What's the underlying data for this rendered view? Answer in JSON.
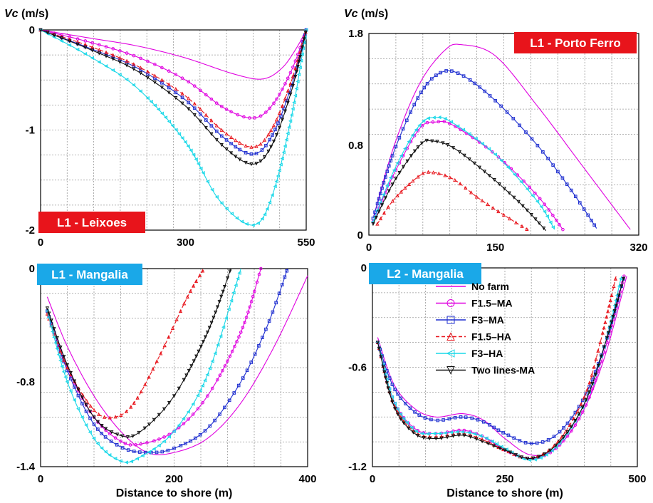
{
  "chart_data": [
    {
      "type": "line",
      "title": "L1 - Leixoes",
      "title_bg": "#e8141b",
      "ylabel_var": "Vc",
      "ylabel_unit": " (m/s)",
      "xlabel": "",
      "xlim": [
        0,
        550
      ],
      "ylim": [
        -2,
        0
      ],
      "xticks": [
        0,
        300,
        550
      ],
      "yticks": [
        0,
        -1,
        -2
      ],
      "xtick_labels": [
        "0",
        "300",
        "550"
      ],
      "ytick_labels": [
        "0",
        "-1",
        "-2"
      ],
      "grid": true,
      "series": [
        {
          "name": "No farm",
          "x": [
            0,
            100,
            200,
            300,
            400,
            460,
            500,
            530,
            550
          ],
          "y": [
            0,
            -0.08,
            -0.16,
            -0.28,
            -0.44,
            -0.49,
            -0.38,
            -0.18,
            0
          ]
        },
        {
          "name": "F1.5–MA",
          "x": [
            0,
            100,
            200,
            300,
            380,
            440,
            480,
            520,
            550
          ],
          "y": [
            0,
            -0.12,
            -0.27,
            -0.5,
            -0.78,
            -0.88,
            -0.75,
            -0.4,
            0
          ]
        },
        {
          "name": "F3–MA",
          "x": [
            0,
            100,
            200,
            300,
            380,
            440,
            480,
            520,
            550
          ],
          "y": [
            0,
            -0.18,
            -0.38,
            -0.7,
            -1.08,
            -1.24,
            -1.05,
            -0.55,
            0
          ]
        },
        {
          "name": "F1.5–HA",
          "x": [
            0,
            100,
            200,
            300,
            380,
            440,
            480,
            520,
            550
          ],
          "y": [
            0,
            -0.16,
            -0.36,
            -0.66,
            -1.02,
            -1.17,
            -0.98,
            -0.5,
            0
          ]
        },
        {
          "name": "F3–HA",
          "x": [
            0,
            100,
            200,
            300,
            370,
            440,
            480,
            520,
            550
          ],
          "y": [
            0,
            -0.26,
            -0.58,
            -1.12,
            -1.7,
            -1.95,
            -1.65,
            -0.85,
            0
          ]
        },
        {
          "name": "Two lines-MA",
          "x": [
            0,
            100,
            200,
            300,
            380,
            440,
            480,
            520,
            550
          ],
          "y": [
            0,
            -0.19,
            -0.41,
            -0.76,
            -1.17,
            -1.34,
            -1.14,
            -0.6,
            0
          ]
        }
      ]
    },
    {
      "type": "line",
      "title": "L1 - Porto Ferro",
      "title_bg": "#e8141b",
      "ylabel_var": "Vc",
      "ylabel_unit": " (m/s)",
      "xlabel": "",
      "xlim": [
        0,
        320
      ],
      "ylim": [
        0,
        1.8
      ],
      "xticks": [
        0,
        150,
        320
      ],
      "yticks": [
        0,
        0.8,
        1.8
      ],
      "xtick_labels": [
        "0",
        "150",
        "320"
      ],
      "ytick_labels": [
        "0",
        "0.8",
        "1.8"
      ],
      "grid": true,
      "series": [
        {
          "name": "No farm",
          "x": [
            5,
            30,
            60,
            90,
            110,
            150,
            200,
            250,
            310
          ],
          "y": [
            0.15,
            0.8,
            1.35,
            1.65,
            1.7,
            1.6,
            1.15,
            0.65,
            0.05
          ]
        },
        {
          "name": "F1.5–MA",
          "x": [
            5,
            30,
            60,
            80,
            100,
            150,
            200,
            230
          ],
          "y": [
            0.12,
            0.55,
            0.95,
            1.01,
            0.98,
            0.72,
            0.35,
            0.05
          ]
        },
        {
          "name": "F3–MA",
          "x": [
            5,
            30,
            60,
            85,
            110,
            150,
            200,
            240,
            270
          ],
          "y": [
            0.15,
            0.75,
            1.25,
            1.45,
            1.43,
            1.2,
            0.8,
            0.4,
            0.06
          ]
        },
        {
          "name": "F1.5–HA",
          "x": [
            10,
            30,
            60,
            75,
            100,
            130,
            160,
            190
          ],
          "y": [
            0.1,
            0.32,
            0.53,
            0.56,
            0.5,
            0.33,
            0.18,
            0.04
          ]
        },
        {
          "name": "F3–HA",
          "x": [
            5,
            30,
            60,
            80,
            100,
            150,
            200,
            220
          ],
          "y": [
            0.12,
            0.58,
            0.98,
            1.05,
            1.0,
            0.72,
            0.3,
            0.05
          ]
        },
        {
          "name": "Two lines-MA",
          "x": [
            5,
            30,
            60,
            75,
            100,
            140,
            180,
            210
          ],
          "y": [
            0.1,
            0.48,
            0.8,
            0.84,
            0.78,
            0.55,
            0.28,
            0.04
          ]
        }
      ]
    },
    {
      "type": "line",
      "title": "L1 - Mangalia",
      "title_bg": "#1aa8e8",
      "ylabel_var": "",
      "ylabel_unit": "",
      "xlabel": "Distance to shore (m)",
      "xlim": [
        0,
        400
      ],
      "ylim": [
        -1.4,
        0
      ],
      "xticks": [
        0,
        200,
        400
      ],
      "yticks": [
        0,
        -0.8,
        -1.4
      ],
      "xtick_labels": [
        "0",
        "200",
        "400"
      ],
      "ytick_labels": [
        "0",
        "-0.8",
        "-1.4"
      ],
      "grid": true,
      "series": [
        {
          "name": "No farm",
          "x": [
            10,
            40,
            80,
            120,
            160,
            200,
            250,
            300,
            350,
            400
          ],
          "y": [
            -0.2,
            -0.55,
            -0.9,
            -1.15,
            -1.3,
            -1.3,
            -1.2,
            -0.95,
            -0.55,
            -0.05
          ]
        },
        {
          "name": "F1.5–MA",
          "x": [
            10,
            40,
            80,
            120,
            150,
            200,
            250,
            300,
            330
          ],
          "y": [
            -0.3,
            -0.7,
            -1.05,
            -1.22,
            -1.24,
            -1.15,
            -0.9,
            -0.45,
            0
          ]
        },
        {
          "name": "F3–MA",
          "x": [
            10,
            40,
            80,
            120,
            160,
            200,
            250,
            300,
            340,
            370
          ],
          "y": [
            -0.3,
            -0.72,
            -1.1,
            -1.26,
            -1.3,
            -1.27,
            -1.13,
            -0.8,
            -0.4,
            0
          ]
        },
        {
          "name": "F1.5–HA",
          "x": [
            10,
            40,
            80,
            110,
            140,
            180,
            220,
            245
          ],
          "y": [
            -0.32,
            -0.7,
            -1.0,
            -1.05,
            -0.95,
            -0.6,
            -0.2,
            0
          ]
        },
        {
          "name": "F3–HA",
          "x": [
            10,
            40,
            80,
            120,
            150,
            200,
            250,
            300
          ],
          "y": [
            -0.3,
            -0.8,
            -1.2,
            -1.36,
            -1.33,
            -1.15,
            -0.75,
            0
          ]
        },
        {
          "name": "Two lines-MA",
          "x": [
            10,
            40,
            80,
            120,
            150,
            200,
            250,
            285
          ],
          "y": [
            -0.28,
            -0.68,
            -1.05,
            -1.18,
            -1.15,
            -0.9,
            -0.45,
            0
          ]
        }
      ]
    },
    {
      "type": "line",
      "title": "L2 - Mangalia",
      "title_bg": "#1aa8e8",
      "ylabel_var": "",
      "ylabel_unit": "",
      "xlabel": "Distance to shore (m)",
      "xlim": [
        0,
        500
      ],
      "ylim": [
        -1.2,
        0
      ],
      "xticks": [
        0,
        250,
        500
      ],
      "yticks": [
        0,
        -0.6,
        -1.2
      ],
      "xtick_labels": [
        "0",
        "250",
        "500"
      ],
      "ytick_labels": [
        "0",
        "-0.6",
        "-1.2"
      ],
      "grid": true,
      "legend": "top-center",
      "series": [
        {
          "name": "No farm",
          "color": "#e000e0",
          "marker": "none",
          "dash": "",
          "x": [
            10,
            40,
            80,
            120,
            170,
            210,
            250,
            300,
            350,
            400,
            440,
            480
          ],
          "y": [
            -0.42,
            -0.7,
            -0.85,
            -0.9,
            -0.88,
            -0.92,
            -1.03,
            -1.13,
            -1.08,
            -0.85,
            -0.52,
            -0.05
          ]
        },
        {
          "name": "F1.5–MA",
          "color": "#e000e0",
          "marker": "circle",
          "dash": "",
          "x": [
            10,
            40,
            80,
            120,
            170,
            210,
            250,
            300,
            350,
            400,
            440,
            475
          ],
          "y": [
            -0.45,
            -0.8,
            -0.97,
            -1.0,
            -0.98,
            -1.02,
            -1.1,
            -1.15,
            -1.08,
            -0.85,
            -0.48,
            -0.05
          ]
        },
        {
          "name": "F3–MA",
          "color": "#1f2fd0",
          "marker": "square",
          "dash": "",
          "x": [
            10,
            40,
            80,
            120,
            170,
            210,
            250,
            300,
            350,
            400,
            440,
            475
          ],
          "y": [
            -0.45,
            -0.72,
            -0.87,
            -0.92,
            -0.9,
            -0.93,
            -1.0,
            -1.06,
            -1.0,
            -0.78,
            -0.45,
            -0.05
          ]
        },
        {
          "name": "F1.5–HA",
          "color": "#e8141b",
          "marker": "triangle-up",
          "dash": "5,3",
          "x": [
            10,
            40,
            80,
            120,
            170,
            210,
            250,
            300,
            350,
            400,
            430,
            460
          ],
          "y": [
            -0.45,
            -0.82,
            -0.99,
            -1.02,
            -1.0,
            -1.04,
            -1.1,
            -1.15,
            -1.05,
            -0.78,
            -0.45,
            -0.05
          ]
        },
        {
          "name": "F3–HA",
          "color": "#18d8e8",
          "marker": "triangle-left",
          "dash": "",
          "x": [
            10,
            40,
            80,
            120,
            170,
            210,
            250,
            300,
            350,
            400,
            440,
            470
          ],
          "y": [
            -0.45,
            -0.8,
            -0.98,
            -1.0,
            -0.99,
            -1.02,
            -1.09,
            -1.16,
            -1.07,
            -0.82,
            -0.45,
            -0.05
          ]
        },
        {
          "name": "Two lines-MA",
          "color": "#111111",
          "marker": "triangle-down",
          "dash": "",
          "x": [
            10,
            40,
            80,
            120,
            170,
            210,
            250,
            300,
            350,
            400,
            440,
            475
          ],
          "y": [
            -0.45,
            -0.83,
            -1.0,
            -1.03,
            -1.01,
            -1.05,
            -1.1,
            -1.15,
            -1.06,
            -0.82,
            -0.45,
            -0.05
          ]
        }
      ]
    }
  ],
  "series_styles": [
    {
      "color": "#e000e0",
      "marker": "none",
      "dash": ""
    },
    {
      "color": "#e000e0",
      "marker": "circle",
      "dash": ""
    },
    {
      "color": "#1f2fd0",
      "marker": "square",
      "dash": ""
    },
    {
      "color": "#e8141b",
      "marker": "triangle-up",
      "dash": "5,3"
    },
    {
      "color": "#18d8e8",
      "marker": "triangle-left",
      "dash": ""
    },
    {
      "color": "#111111",
      "marker": "triangle-down",
      "dash": ""
    }
  ]
}
